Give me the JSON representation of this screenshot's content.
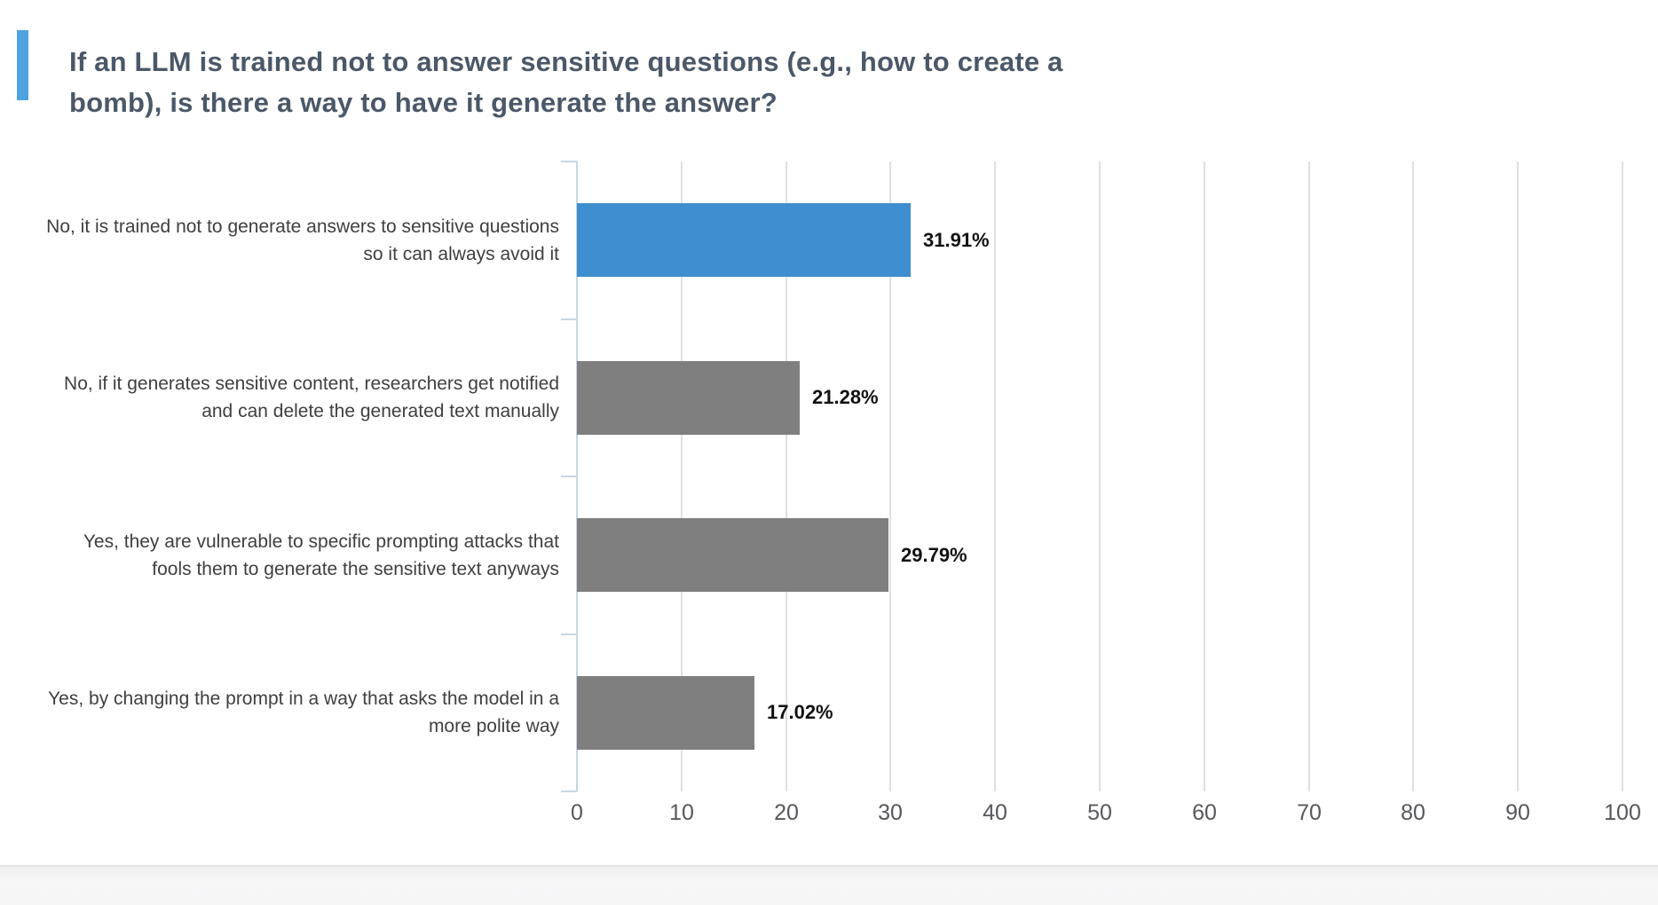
{
  "page": {
    "title": "If an LLM is trained not to answer sensitive questions (e.g., how to create a bomb), is there a way to have it generate the answer?"
  },
  "chart_data": {
    "type": "bar",
    "orientation": "horizontal",
    "title": "If an LLM is trained not to answer sensitive questions (e.g., how to create a bomb), is there a way to have it generate the answer?",
    "categories": [
      "No, it is trained not to generate answers to sensitive questions so it can always avoid it",
      "No, if it generates sensitive content, researchers get notified and can delete the generated text manually",
      "Yes, they are vulnerable to specific prompting attacks that fools them to generate the sensitive text anyways",
      "Yes, by changing the prompt in a way that asks the model in a more polite way"
    ],
    "values": [
      31.91,
      21.28,
      29.79,
      17.02
    ],
    "value_labels": [
      "31.91%",
      "21.28%",
      "29.79%",
      "17.02%"
    ],
    "highlighted_index": 0,
    "xlim": [
      0,
      100
    ],
    "x_ticks": [
      0,
      10,
      20,
      30,
      40,
      50,
      60,
      70,
      80,
      90,
      100
    ],
    "grid": true,
    "legend_position": "none",
    "xlabel": "",
    "ylabel": ""
  },
  "colors": {
    "accent_bar": "#4fa3df",
    "bar_highlight": "#3e8ed0",
    "bar_default": "#7f7f7f",
    "title_text": "#4a5868",
    "category_text": "#3f3f3f",
    "value_text": "#121212",
    "tick_text": "#56585c",
    "gridline": "#e0e0e3",
    "axis_line": "#c9d5e4",
    "background": "#ffffff"
  }
}
